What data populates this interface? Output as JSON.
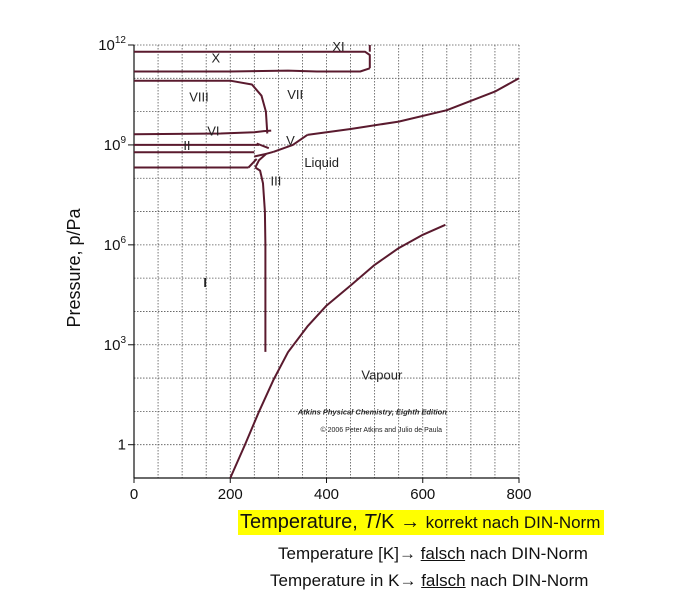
{
  "chart_data": {
    "type": "line",
    "title": "",
    "xlabel": "",
    "ylabel": "Pressure, p/Pa",
    "x_range": [
      0,
      800
    ],
    "y_scale": "log",
    "y_range": [
      0.1,
      1000000000000.0
    ],
    "x_ticks": [
      {
        "value": 0,
        "label": "0"
      },
      {
        "value": 200,
        "label": "200"
      },
      {
        "value": 400,
        "label": "400"
      },
      {
        "value": 600,
        "label": "600"
      },
      {
        "value": 800,
        "label": "800"
      }
    ],
    "y_ticks": [
      {
        "value": 1,
        "label": "1",
        "exp": ""
      },
      {
        "value": 1000,
        "label": "10",
        "exp": "3"
      },
      {
        "value": 1000000,
        "label": "10",
        "exp": "6"
      },
      {
        "value": 1000000000,
        "label": "10",
        "exp": "9"
      },
      {
        "value": 1000000000000,
        "label": "10",
        "exp": "12"
      }
    ],
    "grid": true,
    "line_color": "#5a1a2e",
    "series": [
      {
        "x": [
          200,
          230,
          260,
          290,
          320,
          360,
          400,
          450,
          500,
          550,
          600,
          647
        ],
        "y": [
          0.1,
          0.95,
          10,
          90,
          600,
          3500,
          15000,
          60000,
          250000,
          800000,
          2000000,
          4000000
        ]
      },
      {
        "x": [
          273,
          273,
          272,
          268,
          262,
          252
        ],
        "y": [
          611,
          1000000.0,
          10000000.0,
          70000000.0,
          170000000.0,
          210000000.0
        ]
      },
      {
        "x": [
          252,
          260,
          275,
          290
        ],
        "y": [
          210000000.0,
          350000000.0,
          540000000.0,
          620000000.0
        ]
      },
      {
        "x": [
          290,
          330,
          360
        ],
        "y": [
          620000000.0,
          1000000000.0,
          2000000000.0
        ]
      },
      {
        "x": [
          360,
          450,
          550,
          650,
          750,
          800
        ],
        "y": [
          2000000000.0,
          3000000000.0,
          5000000000.0,
          11000000000.0,
          40000000000.0,
          100000000000.0
        ]
      },
      {
        "x": [
          0,
          238
        ],
        "y": [
          210000000.0,
          210000000.0
        ]
      },
      {
        "x": [
          0,
          250
        ],
        "y": [
          600000000.0,
          600000000.0
        ]
      },
      {
        "x": [
          0,
          260
        ],
        "y": [
          1000000000.0,
          1000000000.0
        ]
      },
      {
        "x": [
          255,
          280
        ],
        "y": [
          1100000000.0,
          800000000.0
        ]
      },
      {
        "x": [
          250,
          275
        ],
        "y": [
          450000000.0,
          540000000.0
        ]
      },
      {
        "x": [
          238,
          255
        ],
        "y": [
          210000000.0,
          380000000.0
        ]
      },
      {
        "x": [
          0,
          180,
          250,
          270,
          285
        ],
        "y": [
          2100000000.0,
          2200000000.0,
          2400000000.0,
          2600000000.0,
          2700000000.0
        ]
      },
      {
        "x": [
          0,
          200,
          245,
          265,
          274,
          277
        ],
        "y": [
          85000000000.0,
          85000000000.0,
          65000000000.0,
          30000000000.0,
          10000000000.0,
          2200000000.0
        ]
      },
      {
        "x": [
          0,
          480,
          490,
          490
        ],
        "y": [
          630000000000.0,
          630000000000.0,
          500000000000.0,
          200000000000.0
        ]
      },
      {
        "x": [
          0,
          200,
          320,
          380,
          430,
          470,
          490
        ],
        "y": [
          160000000000.0,
          160000000000.0,
          170000000000.0,
          160000000000.0,
          160000000000.0,
          160000000000.0,
          200000000000.0
        ]
      },
      {
        "x": [
          490,
          490
        ],
        "y": [
          630000000000.0,
          1000000000000.0
        ]
      }
    ],
    "annotations": [
      {
        "text": "XI",
        "x": 425,
        "y": 650000000000.0
      },
      {
        "text": "X",
        "x": 170,
        "y": 300000000000.0
      },
      {
        "text": "VIII",
        "x": 135,
        "y": 20000000000.0
      },
      {
        "text": "VII",
        "x": 335,
        "y": 24000000000.0
      },
      {
        "text": "VI",
        "x": 165,
        "y": 1900000000.0
      },
      {
        "text": "II",
        "x": 110,
        "y": 700000000.0
      },
      {
        "text": "V",
        "x": 325,
        "y": 1000000000.0
      },
      {
        "text": "III",
        "x": 295,
        "y": 60000000.0
      },
      {
        "text": "Liquid",
        "x": 390,
        "y": 220000000.0
      },
      {
        "text": "I",
        "x": 148,
        "y": 55000.0
      },
      {
        "text": "Vapour",
        "x": 515,
        "y": 90
      },
      {
        "text": "Atkins Physical Chemistry, Eighth Edition",
        "x": 650,
        "y": 8
      },
      {
        "text": "© 2006 Peter Atkins and Julio de Paula",
        "x": 640,
        "y": 2.4
      }
    ]
  },
  "notes": {
    "line1": {
      "text": "Temperature, ",
      "italic": "T",
      "unit": "/K → ",
      "suffix": "korrekt nach DIN-Norm"
    },
    "line2": {
      "prefix": "Temperature [K]→ ",
      "underlined": "falsch",
      "suffix": " nach DIN-Norm"
    },
    "line3": {
      "prefix": "Temperature in K→ ",
      "underlined": "falsch",
      "suffix": " nach DIN-Norm"
    }
  }
}
